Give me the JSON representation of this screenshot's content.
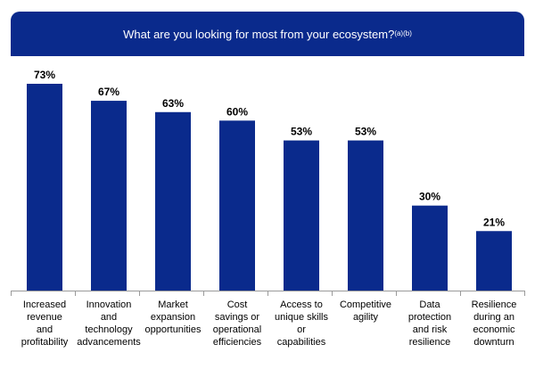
{
  "chart_data": {
    "type": "bar",
    "title": "What are you looking for most from your ecosystem?",
    "title_footnote": "(a)(b)",
    "categories": [
      [
        "Increased",
        "revenue",
        "and",
        "profitability"
      ],
      [
        "Innovation",
        "and",
        "technology",
        "advancements"
      ],
      [
        "Market",
        "expansion",
        "opportunities"
      ],
      [
        "Cost",
        "savings or",
        "operational",
        "efficiencies"
      ],
      [
        "Access to",
        "unique skills",
        "or",
        "capabilities"
      ],
      [
        "Competitive",
        "agility"
      ],
      [
        "Data",
        "protection",
        "and risk",
        "resilience"
      ],
      [
        "Resilience",
        "during an",
        "economic",
        "downturn"
      ]
    ],
    "values": [
      73,
      67,
      63,
      60,
      53,
      53,
      30,
      21
    ],
    "value_labels": [
      "73%",
      "67%",
      "63%",
      "60%",
      "53%",
      "53%",
      "30%",
      "21%"
    ],
    "ylim": [
      0,
      100
    ],
    "xlabel": "",
    "ylabel": "",
    "grid": false,
    "legend": "none",
    "colors": {
      "bar": "#0a2a8c",
      "header": "#0a2a8c",
      "axis": "#9a9a9a",
      "text": "#000000"
    }
  }
}
